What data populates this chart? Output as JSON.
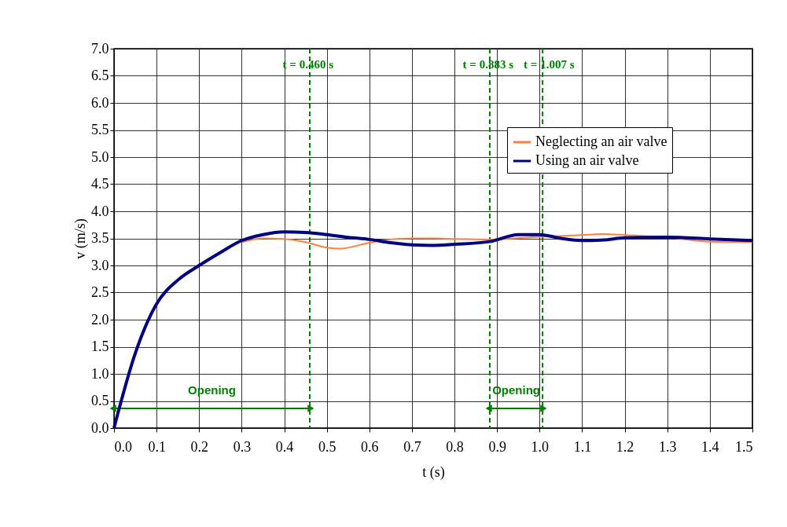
{
  "chart_data": {
    "type": "line",
    "xlabel": "t (s)",
    "ylabel": "v (m/s)",
    "series": [
      {
        "name": "Neglecting an air valve",
        "color": "#ff7f3f",
        "x": [
          0.3,
          0.35,
          0.4,
          0.45,
          0.5,
          0.53,
          0.6,
          0.65,
          0.7,
          0.75,
          0.8,
          0.883,
          1.0,
          1.1,
          1.15,
          1.2,
          1.3,
          1.4,
          1.5
        ],
        "values": [
          3.43,
          3.5,
          3.49,
          3.43,
          3.33,
          3.31,
          3.42,
          3.48,
          3.5,
          3.5,
          3.49,
          3.48,
          3.53,
          3.56,
          3.58,
          3.56,
          3.52,
          3.44,
          3.43
        ]
      },
      {
        "name": "Using an air valve",
        "color": "#000080",
        "x": [
          0,
          0.05,
          0.1,
          0.15,
          0.2,
          0.25,
          0.3,
          0.35,
          0.4,
          0.45,
          0.5,
          0.55,
          0.6,
          0.65,
          0.7,
          0.75,
          0.8,
          0.883,
          0.95,
          1.0,
          1.05,
          1.1,
          1.15,
          1.2,
          1.3,
          1.4,
          1.5
        ],
        "values": [
          0,
          1.38,
          2.29,
          2.73,
          3.0,
          3.24,
          3.46,
          3.57,
          3.62,
          3.61,
          3.57,
          3.52,
          3.48,
          3.42,
          3.38,
          3.37,
          3.39,
          3.44,
          3.57,
          3.57,
          3.5,
          3.46,
          3.47,
          3.51,
          3.52,
          3.49,
          3.46
        ]
      }
    ],
    "xlim": [
      0,
      1.5
    ],
    "xticks": [
      {
        "value": 0,
        "label": "0.0"
      },
      0.1,
      0.2,
      0.3,
      0.4,
      0.5,
      0.6,
      0.7,
      0.8,
      0.9,
      {
        "value": 1,
        "label": "1.0"
      },
      1.1,
      1.2,
      1.3,
      1.4,
      1.5
    ],
    "ylim": [
      0,
      7
    ],
    "yticks": [
      {
        "value": 0,
        "label": "0.0"
      },
      0.5,
      {
        "value": 1,
        "label": "1.0"
      },
      1.5,
      {
        "value": 2,
        "label": "2.0"
      },
      2.5,
      {
        "value": 3,
        "label": "3.0"
      },
      3.5,
      {
        "value": 4,
        "label": "4.0"
      },
      4.5,
      {
        "value": 5,
        "label": "5.0"
      },
      5.5,
      {
        "value": 6,
        "label": "6.0"
      },
      6.5,
      {
        "value": 7,
        "label": "7.0"
      }
    ],
    "ref_lines": [
      {
        "axis": "x",
        "value": 0.46,
        "label": "t = 0.460 s",
        "color": "#008000",
        "line_style": "dashed"
      },
      {
        "axis": "x",
        "value": 0.883,
        "label": "t = 0.883 s",
        "color": "#008000",
        "line_style": "dashed"
      },
      {
        "axis": "x",
        "value": 1.007,
        "label": "t = 1.007 s",
        "color": "#008000",
        "line_style": "dashed"
      }
    ],
    "annotations": [
      "Opening",
      "Opening"
    ],
    "grid": true,
    "legend": "top right",
    "marker": "none",
    "line_style": "solid"
  }
}
